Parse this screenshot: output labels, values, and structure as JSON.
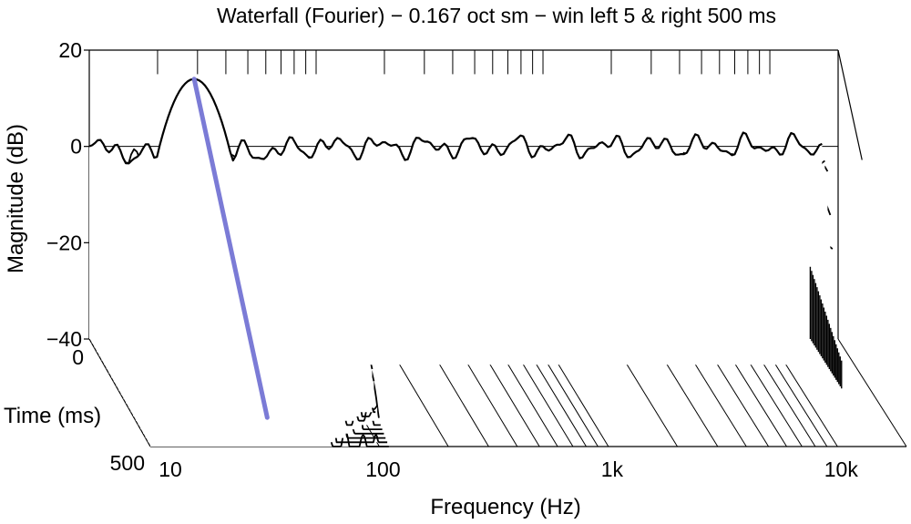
{
  "chart_data": {
    "type": "waterfall",
    "title": "Waterfall (Fourier) − 0.167 oct sm − win left 5 & right 500 ms",
    "xlabel": "Frequency (Hz)",
    "ylabel": "Magnitude (dB)",
    "zlabel": "Time (ms)",
    "x_scale": "log",
    "xlim": [
      10,
      20000
    ],
    "ylim": [
      -40,
      20
    ],
    "zlim": [
      0,
      500
    ],
    "x_ticks": [
      {
        "value": 10,
        "label": "10"
      },
      {
        "value": 100,
        "label": "100"
      },
      {
        "value": 1000,
        "label": "1k"
      },
      {
        "value": 10000,
        "label": "10k"
      }
    ],
    "y_ticks": [
      {
        "value": 20,
        "label": "20"
      },
      {
        "value": 0,
        "label": "0"
      },
      {
        "value": -20,
        "label": "−20"
      },
      {
        "value": -40,
        "label": "−40"
      }
    ],
    "z_ticks": [
      {
        "value": 0,
        "label": "0"
      },
      {
        "value": 500,
        "label": "500"
      }
    ],
    "grid": true,
    "slice_count": 26,
    "slice_times_ms": [
      0,
      20,
      40,
      60,
      80,
      100,
      120,
      140,
      160,
      180,
      200,
      220,
      240,
      260,
      280,
      300,
      320,
      340,
      360,
      380,
      400,
      420,
      440,
      460,
      480,
      500
    ],
    "resonance": {
      "frequency_hz": 29,
      "peak_db": 14,
      "color": "#7b7bd6"
    },
    "level_db": {
      "low_shelf": -2,
      "mid_band": 0
    },
    "colors": {
      "lines": "#000000",
      "decay_ridge": "#7b7bd6",
      "background": "#ffffff"
    }
  }
}
